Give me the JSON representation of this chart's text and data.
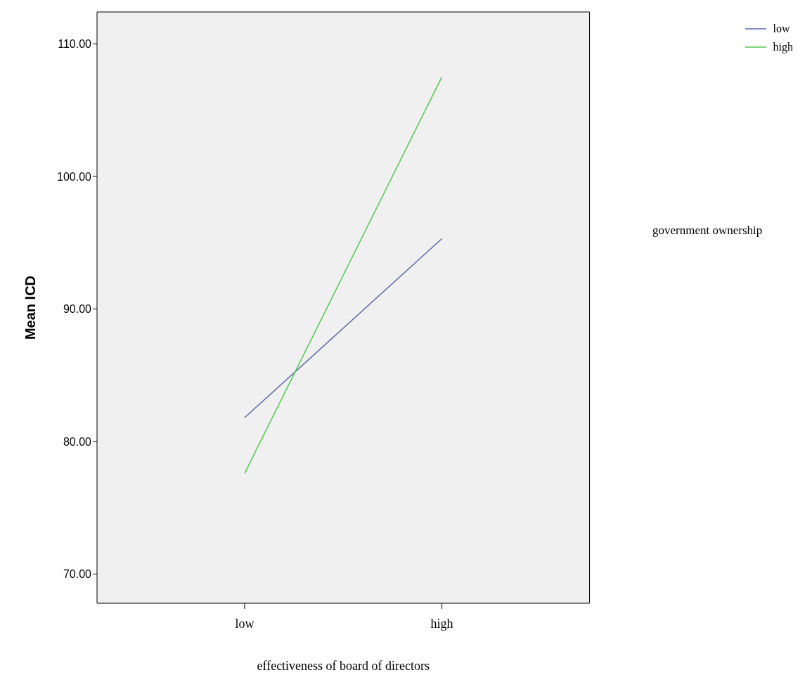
{
  "chart_data": {
    "type": "line",
    "xlabel": "effectiveness of board of directors",
    "ylabel": "Mean ICD",
    "legend_title": "government ownership",
    "categories": [
      "low",
      "high"
    ],
    "series": [
      {
        "name": "low",
        "color": "#5a68a8",
        "values": [
          81.8,
          95.3
        ]
      },
      {
        "name": "high",
        "color": "#4fc94f",
        "values": [
          77.6,
          107.5
        ]
      }
    ],
    "ylim": [
      67.8,
      112.4
    ],
    "yticks": [
      {
        "value": 70,
        "label": "70.00"
      },
      {
        "value": 80,
        "label": "80.00"
      },
      {
        "value": 90,
        "label": "90.00"
      },
      {
        "value": 100,
        "label": "100.00"
      },
      {
        "value": 110,
        "label": "110.00"
      }
    ],
    "grid": false,
    "legend": "top right",
    "marker": "none",
    "line_style": "solid"
  }
}
